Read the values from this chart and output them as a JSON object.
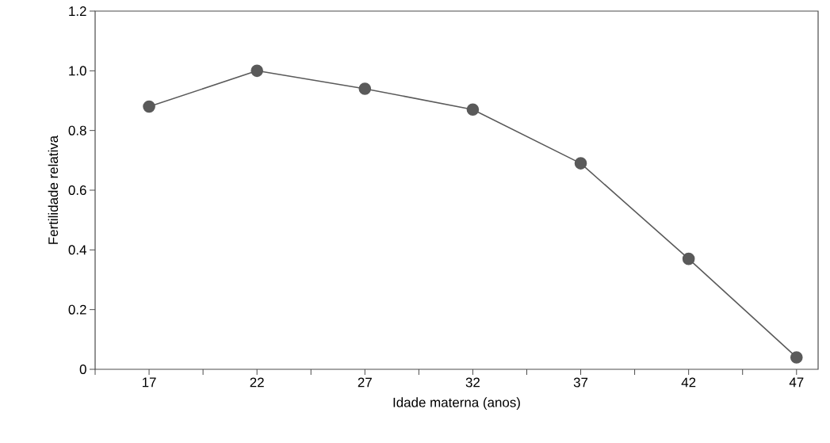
{
  "chart_data": {
    "type": "line",
    "xlabel": "Idade materna (anos)",
    "ylabel": "Fertilidade relativa",
    "x": [
      17,
      22,
      27,
      32,
      37,
      42,
      47
    ],
    "series": [
      {
        "color": "#5a5a5a",
        "values": [
          0.88,
          1.0,
          0.94,
          0.87,
          0.69,
          0.37,
          0.04
        ]
      }
    ],
    "marker": "circle",
    "line_style": "solid",
    "xlim": [
      14.5,
      48
    ],
    "xticks": [
      {
        "value": 14.5,
        "label": null
      },
      17,
      {
        "value": 19.5,
        "label": null
      },
      22,
      {
        "value": 24.5,
        "label": null
      },
      27,
      {
        "value": 29.5,
        "label": null
      },
      32,
      {
        "value": 34.5,
        "label": null
      },
      37,
      {
        "value": 39.5,
        "label": null
      },
      42,
      {
        "value": 44.5,
        "label": null
      },
      47
    ],
    "ylim": [
      0,
      1.2
    ],
    "yticks": [
      0,
      0.2,
      0.4,
      0.6,
      0.8,
      {
        "value": 1.0,
        "label": "1.0"
      },
      1.2
    ]
  }
}
